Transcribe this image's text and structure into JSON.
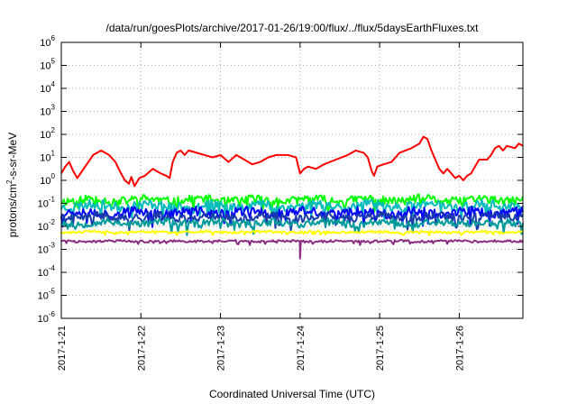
{
  "chart_data": {
    "type": "line",
    "title": "/data/run/goesPlots/archive/2017-01-26/19:00/flux/../flux/5daysEarthFluxes.txt",
    "xlabel": "Coordinated Universal Time (UTC)",
    "ylabel": {
      "pre": "protons/cm",
      "sup": "2",
      "post": "-s-sr-MeV"
    },
    "y_scale": "log",
    "ylim_exp": [
      -6,
      6
    ],
    "y_ticks": [
      {
        "base": "10",
        "exp": "6"
      },
      {
        "base": "10",
        "exp": "5"
      },
      {
        "base": "10",
        "exp": "4"
      },
      {
        "base": "10",
        "exp": "3"
      },
      {
        "base": "10",
        "exp": "2"
      },
      {
        "base": "10",
        "exp": "1"
      },
      {
        "base": "10",
        "exp": "0"
      },
      {
        "base": "10",
        "exp": "-1"
      },
      {
        "base": "10",
        "exp": "-2"
      },
      {
        "base": "10",
        "exp": "-3"
      },
      {
        "base": "10",
        "exp": "-4"
      },
      {
        "base": "10",
        "exp": "-5"
      },
      {
        "base": "10",
        "exp": "-6"
      }
    ],
    "x_ticks": [
      "2017-1-21",
      "2017-1-22",
      "2017-1-23",
      "2017-1-24",
      "2017-1-25",
      "2017-1-26"
    ],
    "xlim_days": [
      0,
      5.8
    ],
    "grid": true,
    "series": [
      {
        "color": "#ff0000",
        "points": [
          [
            0,
            0.3
          ],
          [
            0.05,
            0.6
          ],
          [
            0.1,
            0.8
          ],
          [
            0.15,
            0.4
          ],
          [
            0.2,
            0.1
          ],
          [
            0.3,
            0.6
          ],
          [
            0.4,
            1.1
          ],
          [
            0.5,
            1.3
          ],
          [
            0.6,
            1.1
          ],
          [
            0.68,
            0.8
          ],
          [
            0.75,
            0.3
          ],
          [
            0.8,
            0.0
          ],
          [
            0.85,
            -0.15
          ],
          [
            0.88,
            0.15
          ],
          [
            0.92,
            -0.25
          ],
          [
            0.98,
            0.1
          ],
          [
            1.05,
            0.2
          ],
          [
            1.15,
            0.5
          ],
          [
            1.25,
            0.3
          ],
          [
            1.32,
            0.2
          ],
          [
            1.36,
            0.1
          ],
          [
            1.4,
            0.8
          ],
          [
            1.45,
            1.2
          ],
          [
            1.5,
            1.3
          ],
          [
            1.55,
            1.1
          ],
          [
            1.6,
            1.3
          ],
          [
            1.7,
            1.2
          ],
          [
            1.8,
            1.1
          ],
          [
            1.9,
            1.0
          ],
          [
            2.0,
            1.1
          ],
          [
            2.1,
            0.8
          ],
          [
            2.2,
            1.1
          ],
          [
            2.3,
            0.9
          ],
          [
            2.4,
            0.7
          ],
          [
            2.5,
            0.8
          ],
          [
            2.6,
            1.0
          ],
          [
            2.7,
            1.1
          ],
          [
            2.85,
            1.1
          ],
          [
            2.95,
            1.0
          ],
          [
            3.0,
            0.3
          ],
          [
            3.05,
            0.5
          ],
          [
            3.1,
            0.6
          ],
          [
            3.2,
            0.5
          ],
          [
            3.3,
            0.7
          ],
          [
            3.45,
            0.9
          ],
          [
            3.6,
            1.1
          ],
          [
            3.7,
            1.3
          ],
          [
            3.8,
            1.2
          ],
          [
            3.85,
            1.0
          ],
          [
            3.9,
            0.4
          ],
          [
            3.93,
            0.2
          ],
          [
            3.97,
            0.6
          ],
          [
            4.05,
            0.7
          ],
          [
            4.15,
            0.8
          ],
          [
            4.25,
            1.2
          ],
          [
            4.4,
            1.4
          ],
          [
            4.5,
            1.6
          ],
          [
            4.55,
            1.9
          ],
          [
            4.6,
            1.8
          ],
          [
            4.65,
            1.3
          ],
          [
            4.7,
            0.9
          ],
          [
            4.75,
            0.5
          ],
          [
            4.8,
            0.3
          ],
          [
            4.85,
            0.5
          ],
          [
            4.9,
            0.3
          ],
          [
            4.95,
            0.1
          ],
          [
            5.0,
            0.2
          ],
          [
            5.05,
            0.0
          ],
          [
            5.1,
            0.2
          ],
          [
            5.15,
            0.3
          ],
          [
            5.25,
            0.9
          ],
          [
            5.35,
            0.9
          ],
          [
            5.4,
            1.1
          ],
          [
            5.45,
            1.4
          ],
          [
            5.5,
            1.5
          ],
          [
            5.55,
            1.3
          ],
          [
            5.6,
            1.5
          ],
          [
            5.7,
            1.4
          ],
          [
            5.75,
            1.6
          ],
          [
            5.8,
            1.5
          ]
        ]
      },
      {
        "color": "#00ff00",
        "base": -0.85,
        "amp": 0.18,
        "seed": 11
      },
      {
        "color": "#00bbbb",
        "base": -1.1,
        "amp": 0.2,
        "seed": 23
      },
      {
        "color": "#0000ff",
        "base": -1.4,
        "amp": 0.2,
        "seed": 37
      },
      {
        "color": "#1a3caa",
        "base": -1.6,
        "amp": 0.18,
        "seed": 41
      },
      {
        "color": "#009a9a",
        "base": -1.85,
        "amp": 0.16,
        "seed": 53
      },
      {
        "color": "#ffff00",
        "base": -2.25,
        "amp": 0.05,
        "seed": 61
      },
      {
        "color": "#8b2e82",
        "base": -2.65,
        "amp": 0.05,
        "seed": 77,
        "spike": [
          3.0,
          -3.4
        ]
      }
    ]
  }
}
